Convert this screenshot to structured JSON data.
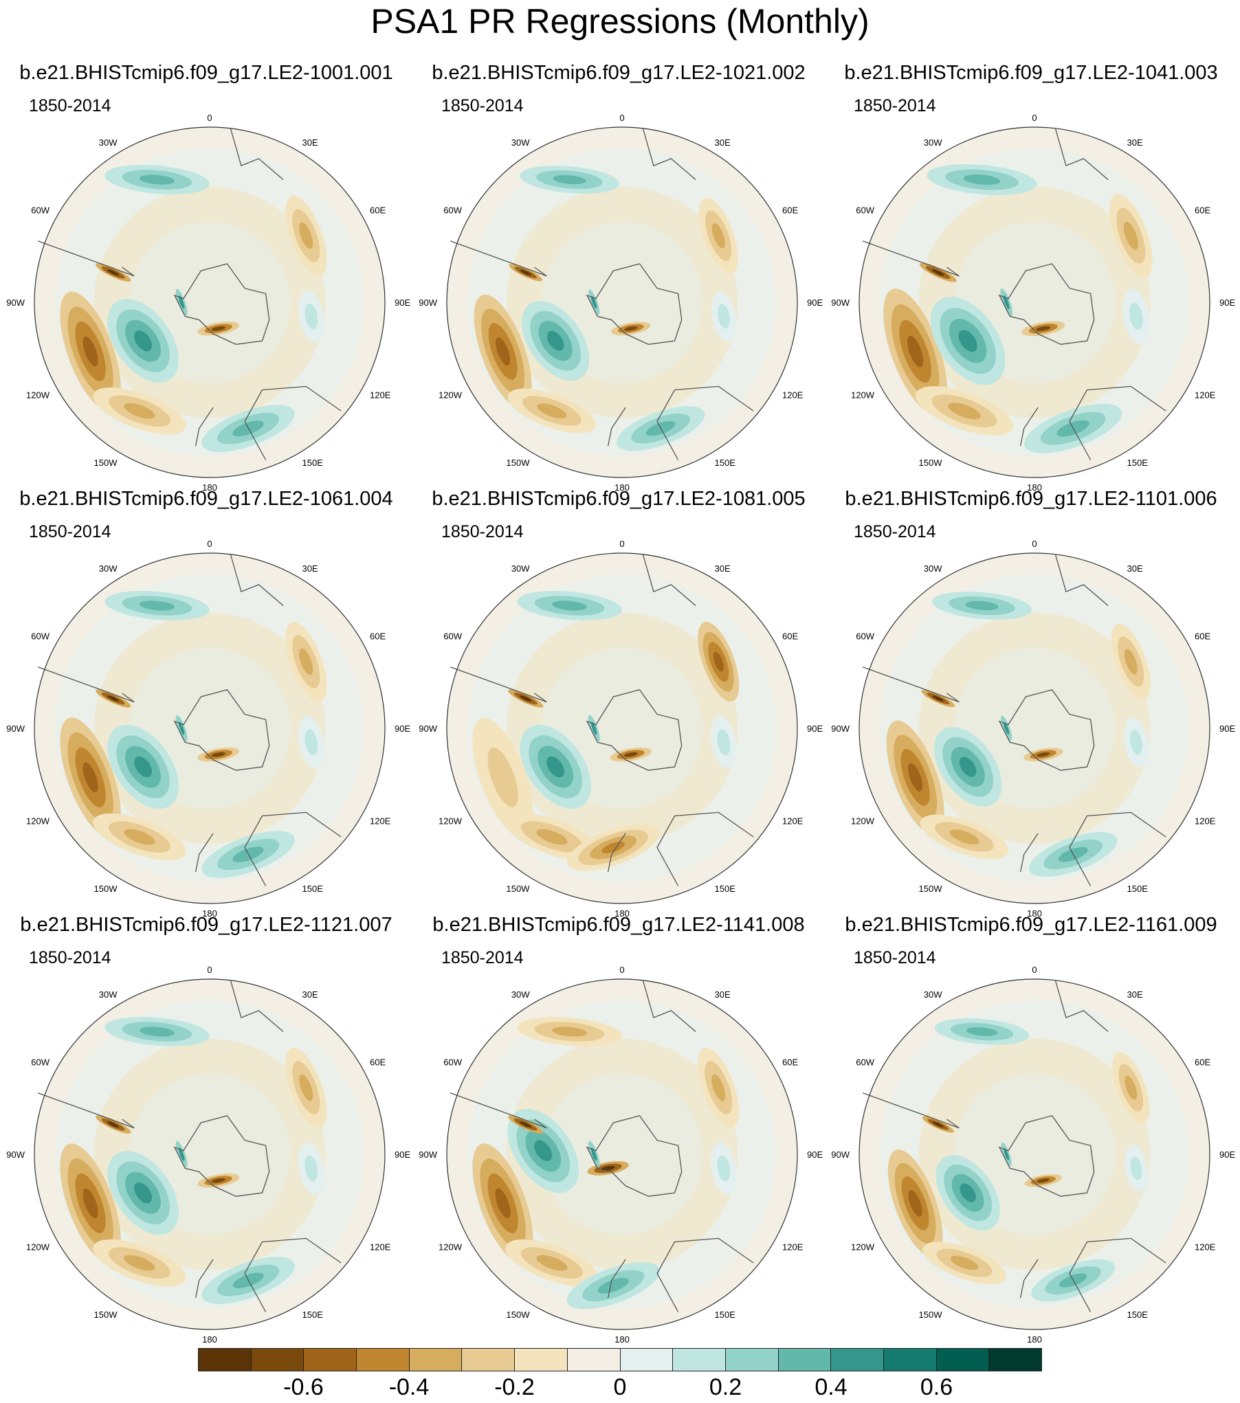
{
  "figure": {
    "title": "PSA1 PR Regressions (Monthly)"
  },
  "longitude_labels": [
    "0",
    "30E",
    "60E",
    "90E",
    "120E",
    "150E",
    "180",
    "150W",
    "120W",
    "90W",
    "60W",
    "30W"
  ],
  "panels": [
    {
      "run": "b.e21.BHISTcmip6.f09_g17.LE2-1001.001",
      "period": "1850-2014"
    },
    {
      "run": "b.e21.BHISTcmip6.f09_g17.LE2-1021.002",
      "period": "1850-2014"
    },
    {
      "run": "b.e21.BHISTcmip6.f09_g17.LE2-1041.003",
      "period": "1850-2014"
    },
    {
      "run": "b.e21.BHISTcmip6.f09_g17.LE2-1061.004",
      "period": "1850-2014"
    },
    {
      "run": "b.e21.BHISTcmip6.f09_g17.LE2-1081.005",
      "period": "1850-2014"
    },
    {
      "run": "b.e21.BHISTcmip6.f09_g17.LE2-1101.006",
      "period": "1850-2014"
    },
    {
      "run": "b.e21.BHISTcmip6.f09_g17.LE2-1121.007",
      "period": "1850-2014"
    },
    {
      "run": "b.e21.BHISTcmip6.f09_g17.LE2-1141.008",
      "period": "1850-2014"
    },
    {
      "run": "b.e21.BHISTcmip6.f09_g17.LE2-1161.009",
      "period": "1850-2014"
    }
  ],
  "colorbar": {
    "colors": [
      "#5a3406",
      "#7a4a0c",
      "#a0651a",
      "#c0862f",
      "#d6ac5e",
      "#e8cb92",
      "#f3e4be",
      "#f3efe4",
      "#e3f0ef",
      "#bfe6e1",
      "#93d2c8",
      "#62b8ab",
      "#35978c",
      "#157b70",
      "#035e52",
      "#00392f"
    ],
    "tick_labels": [
      "-0.6",
      "-0.4",
      "-0.2",
      "0",
      "0.2",
      "0.4",
      "0.6"
    ],
    "tick_boundaries": [
      1,
      3,
      5,
      7,
      9,
      11,
      13
    ]
  }
}
